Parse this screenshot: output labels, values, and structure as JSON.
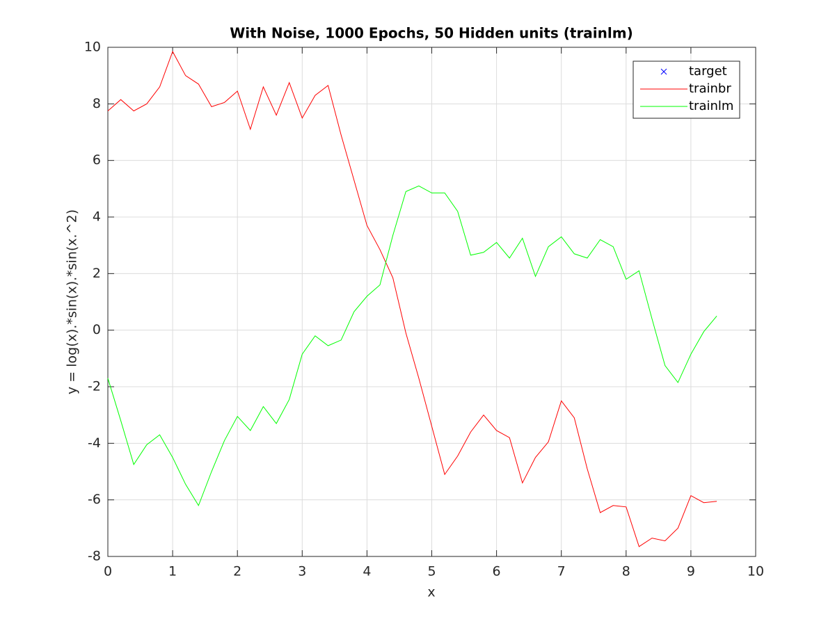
{
  "chart_data": {
    "type": "line",
    "title": "With Noise, 1000 Epochs, 50 Hidden units (trainlm)",
    "xlabel": "x",
    "ylabel": "y = log(x).*sin(x).*sin(x.^2)",
    "x": [
      0,
      0.2,
      0.4,
      0.6,
      0.8,
      1,
      1.2,
      1.4,
      1.6,
      1.8,
      2,
      2.2,
      2.4,
      2.6,
      2.8,
      3,
      3.2,
      3.4,
      3.6,
      3.8,
      4,
      4.2,
      4.4,
      4.6,
      4.8,
      5,
      5.2,
      5.4,
      5.6,
      5.8,
      6,
      6.2,
      6.4,
      6.6,
      6.8,
      7,
      7.2,
      7.4,
      7.6,
      7.8,
      8,
      8.2,
      8.4,
      8.6,
      8.8,
      9,
      9.2,
      9.4
    ],
    "series": [
      {
        "name": "target",
        "color": "#0000ff",
        "marker": "x",
        "values": [
          null,
          null,
          null,
          null,
          null,
          null,
          null,
          null,
          null,
          null,
          null,
          null,
          null,
          null,
          null,
          null,
          null,
          null,
          null,
          null,
          null,
          null,
          null,
          null,
          null,
          null,
          null,
          null,
          null,
          null,
          null,
          null,
          null,
          null,
          null,
          null,
          null,
          null,
          null,
          null,
          null,
          null,
          null,
          null,
          null,
          null,
          null,
          null
        ]
      },
      {
        "name": "trainbr",
        "color": "#ff0000",
        "values": [
          7.75,
          8.15,
          7.75,
          8.0,
          8.6,
          9.85,
          9.0,
          8.7,
          7.9,
          8.05,
          8.45,
          7.1,
          8.6,
          7.6,
          8.75,
          7.5,
          8.3,
          8.65,
          6.9,
          5.3,
          3.7,
          2.85,
          1.85,
          -0.1,
          -1.7,
          -3.4,
          -5.1,
          -4.45,
          -3.6,
          -3.0,
          -3.55,
          -3.8,
          -5.4,
          -4.5,
          -3.95,
          -2.5,
          -3.1,
          -4.9,
          -6.45,
          -6.2,
          -6.25,
          -7.65,
          -7.35,
          -7.45,
          -7.0,
          -5.85,
          -6.1,
          -6.05
        ]
      },
      {
        "name": "trainlm",
        "color": "#00ff00",
        "values": [
          -1.7,
          -3.2,
          -4.75,
          -4.05,
          -3.7,
          -4.5,
          -5.45,
          -6.2,
          -5.0,
          -3.9,
          -3.05,
          -3.55,
          -2.7,
          -3.3,
          -2.45,
          -0.85,
          -0.2,
          -0.55,
          -0.35,
          0.65,
          1.2,
          1.6,
          3.35,
          4.9,
          5.1,
          4.85,
          4.85,
          4.2,
          2.65,
          2.75,
          3.1,
          2.55,
          3.25,
          1.9,
          2.95,
          3.3,
          2.7,
          2.55,
          3.2,
          2.95,
          1.8,
          2.1,
          0.4,
          -1.25,
          -1.85,
          -0.85,
          -0.05,
          0.5
        ]
      }
    ],
    "xlim": [
      0,
      10
    ],
    "xticks": [
      0,
      1,
      2,
      3,
      4,
      5,
      6,
      7,
      8,
      9,
      10
    ],
    "ylim": [
      -8,
      10
    ],
    "yticks": [
      -8,
      -6,
      -4,
      -2,
      0,
      2,
      4,
      6,
      8,
      10
    ],
    "grid": true,
    "legend": "northeast"
  }
}
